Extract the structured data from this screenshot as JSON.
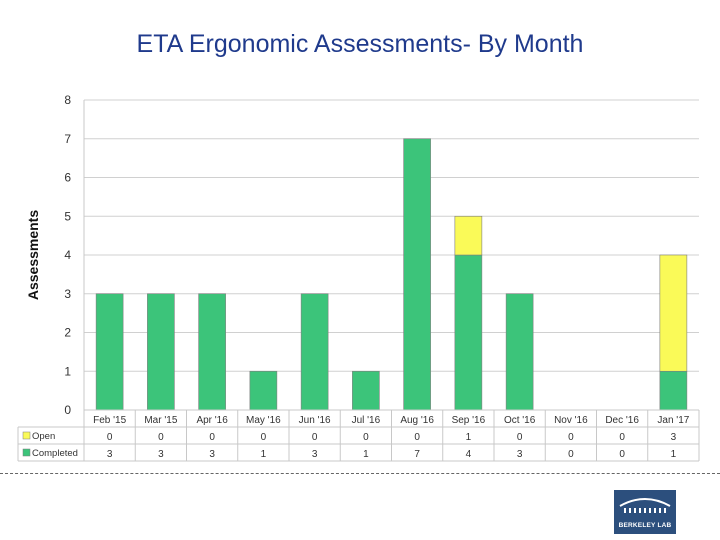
{
  "slide": {
    "title": "ETA Ergonomic Assessments- By Month"
  },
  "chart_data": {
    "type": "bar",
    "stacked": true,
    "title": "ETA Ergonomic Assessments- By Month",
    "xlabel": "",
    "ylabel": "Assessments",
    "ylim": [
      0,
      8
    ],
    "yticks": [
      0,
      1,
      2,
      3,
      4,
      5,
      6,
      7,
      8
    ],
    "grid": true,
    "categories": [
      "Feb '15",
      "Mar '15",
      "Apr '16",
      "May '16",
      "Jun '16",
      "Jul '16",
      "Aug '16",
      "Sep '16",
      "Oct '16",
      "Nov '16",
      "Dec '16",
      "Jan '17"
    ],
    "series": [
      {
        "name": "Completed",
        "color": "#3cc47a",
        "values": [
          3,
          3,
          3,
          1,
          3,
          1,
          7,
          4,
          3,
          0,
          0,
          1
        ]
      },
      {
        "name": "Open",
        "color": "#fafa58",
        "values": [
          0,
          0,
          0,
          0,
          0,
          0,
          0,
          1,
          0,
          0,
          0,
          3
        ]
      }
    ],
    "data_table": {
      "rows": [
        {
          "label": "Open",
          "series": "Open",
          "values": [
            0,
            0,
            0,
            0,
            0,
            0,
            0,
            1,
            0,
            0,
            0,
            3
          ]
        },
        {
          "label": "Completed",
          "series": "Completed",
          "values": [
            3,
            3,
            3,
            1,
            3,
            1,
            7,
            4,
            3,
            0,
            0,
            1
          ]
        }
      ]
    }
  },
  "footer": {
    "logo_text": "BERKELEY LAB"
  }
}
